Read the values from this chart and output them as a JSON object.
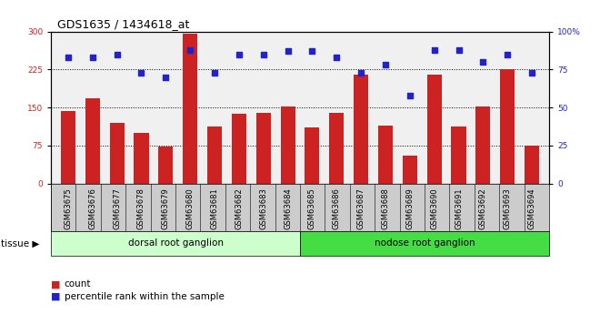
{
  "title": "GDS1635 / 1434618_at",
  "samples": [
    "GSM63675",
    "GSM63676",
    "GSM63677",
    "GSM63678",
    "GSM63679",
    "GSM63680",
    "GSM63681",
    "GSM63682",
    "GSM63683",
    "GSM63684",
    "GSM63685",
    "GSM63686",
    "GSM63687",
    "GSM63688",
    "GSM63689",
    "GSM63690",
    "GSM63691",
    "GSM63692",
    "GSM63693",
    "GSM63694"
  ],
  "counts": [
    143,
    168,
    120,
    100,
    73,
    295,
    113,
    138,
    140,
    152,
    110,
    140,
    215,
    115,
    55,
    215,
    113,
    152,
    225,
    75
  ],
  "percentiles": [
    83,
    83,
    85,
    73,
    70,
    88,
    73,
    85,
    85,
    87,
    87,
    83,
    73,
    78,
    58,
    88,
    88,
    80,
    85,
    73
  ],
  "group1_label": "dorsal root ganglion",
  "group1_count": 10,
  "group2_label": "nodose root ganglion",
  "group2_count": 10,
  "tissue_label": "tissue",
  "bar_color": "#cc2222",
  "dot_color": "#2222cc",
  "ylim_left": [
    0,
    300
  ],
  "ylim_right": [
    0,
    100
  ],
  "yticks_left": [
    0,
    75,
    150,
    225,
    300
  ],
  "yticks_right": [
    0,
    25,
    50,
    75,
    100
  ],
  "bg_color": "#cccccc",
  "plot_bg": "#f0f0f0",
  "group1_bg": "#ccffcc",
  "group2_bg": "#44dd44",
  "legend_count_label": "count",
  "legend_pct_label": "percentile rank within the sample",
  "title_fontsize": 9,
  "tick_fontsize": 6.5,
  "label_fontsize": 7.5
}
